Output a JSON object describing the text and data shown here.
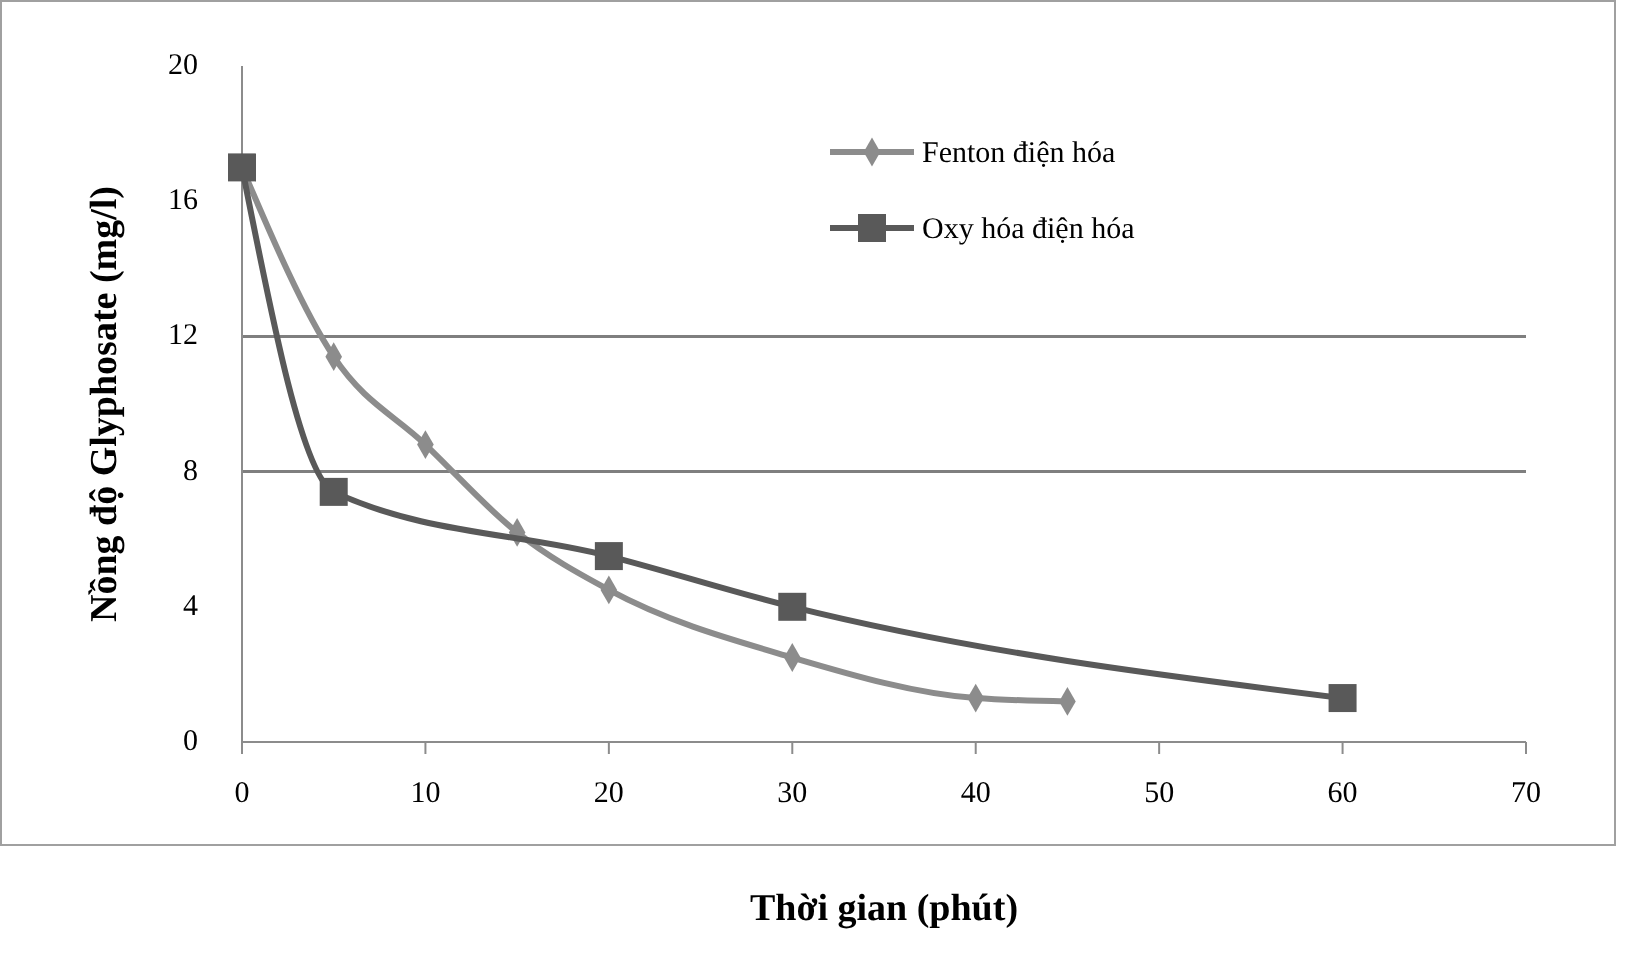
{
  "chart_data": {
    "type": "line",
    "xlabel": "Thời gian (phút)",
    "ylabel": "Nồng độ Glyphosate (mg/l)",
    "xlim": [
      0,
      70
    ],
    "xticks": [
      0,
      10,
      20,
      30,
      40,
      50,
      60,
      70
    ],
    "ylim": [
      0,
      20
    ],
    "yticks": [
      0,
      4,
      8,
      12,
      16,
      20
    ],
    "legend": "top right",
    "ref_lines": [
      {
        "axis": "y",
        "value": 8,
        "color": "#7f7f7f"
      },
      {
        "axis": "y",
        "value": 12,
        "color": "#7f7f7f"
      }
    ],
    "series": [
      {
        "name": "Fenton điện hóa",
        "color": "#8c8c8c",
        "marker": "diamond",
        "x": [
          0,
          5,
          10,
          15,
          20,
          30,
          40,
          45
        ],
        "values": [
          17,
          11.4,
          8.8,
          6.2,
          4.5,
          2.5,
          1.3,
          1.2
        ]
      },
      {
        "name": "Oxy hóa điện hóa",
        "color": "#595959",
        "marker": "square",
        "x": [
          0,
          5,
          20,
          30,
          60
        ],
        "values": [
          17,
          7.4,
          5.5,
          4,
          1.3
        ]
      }
    ]
  }
}
